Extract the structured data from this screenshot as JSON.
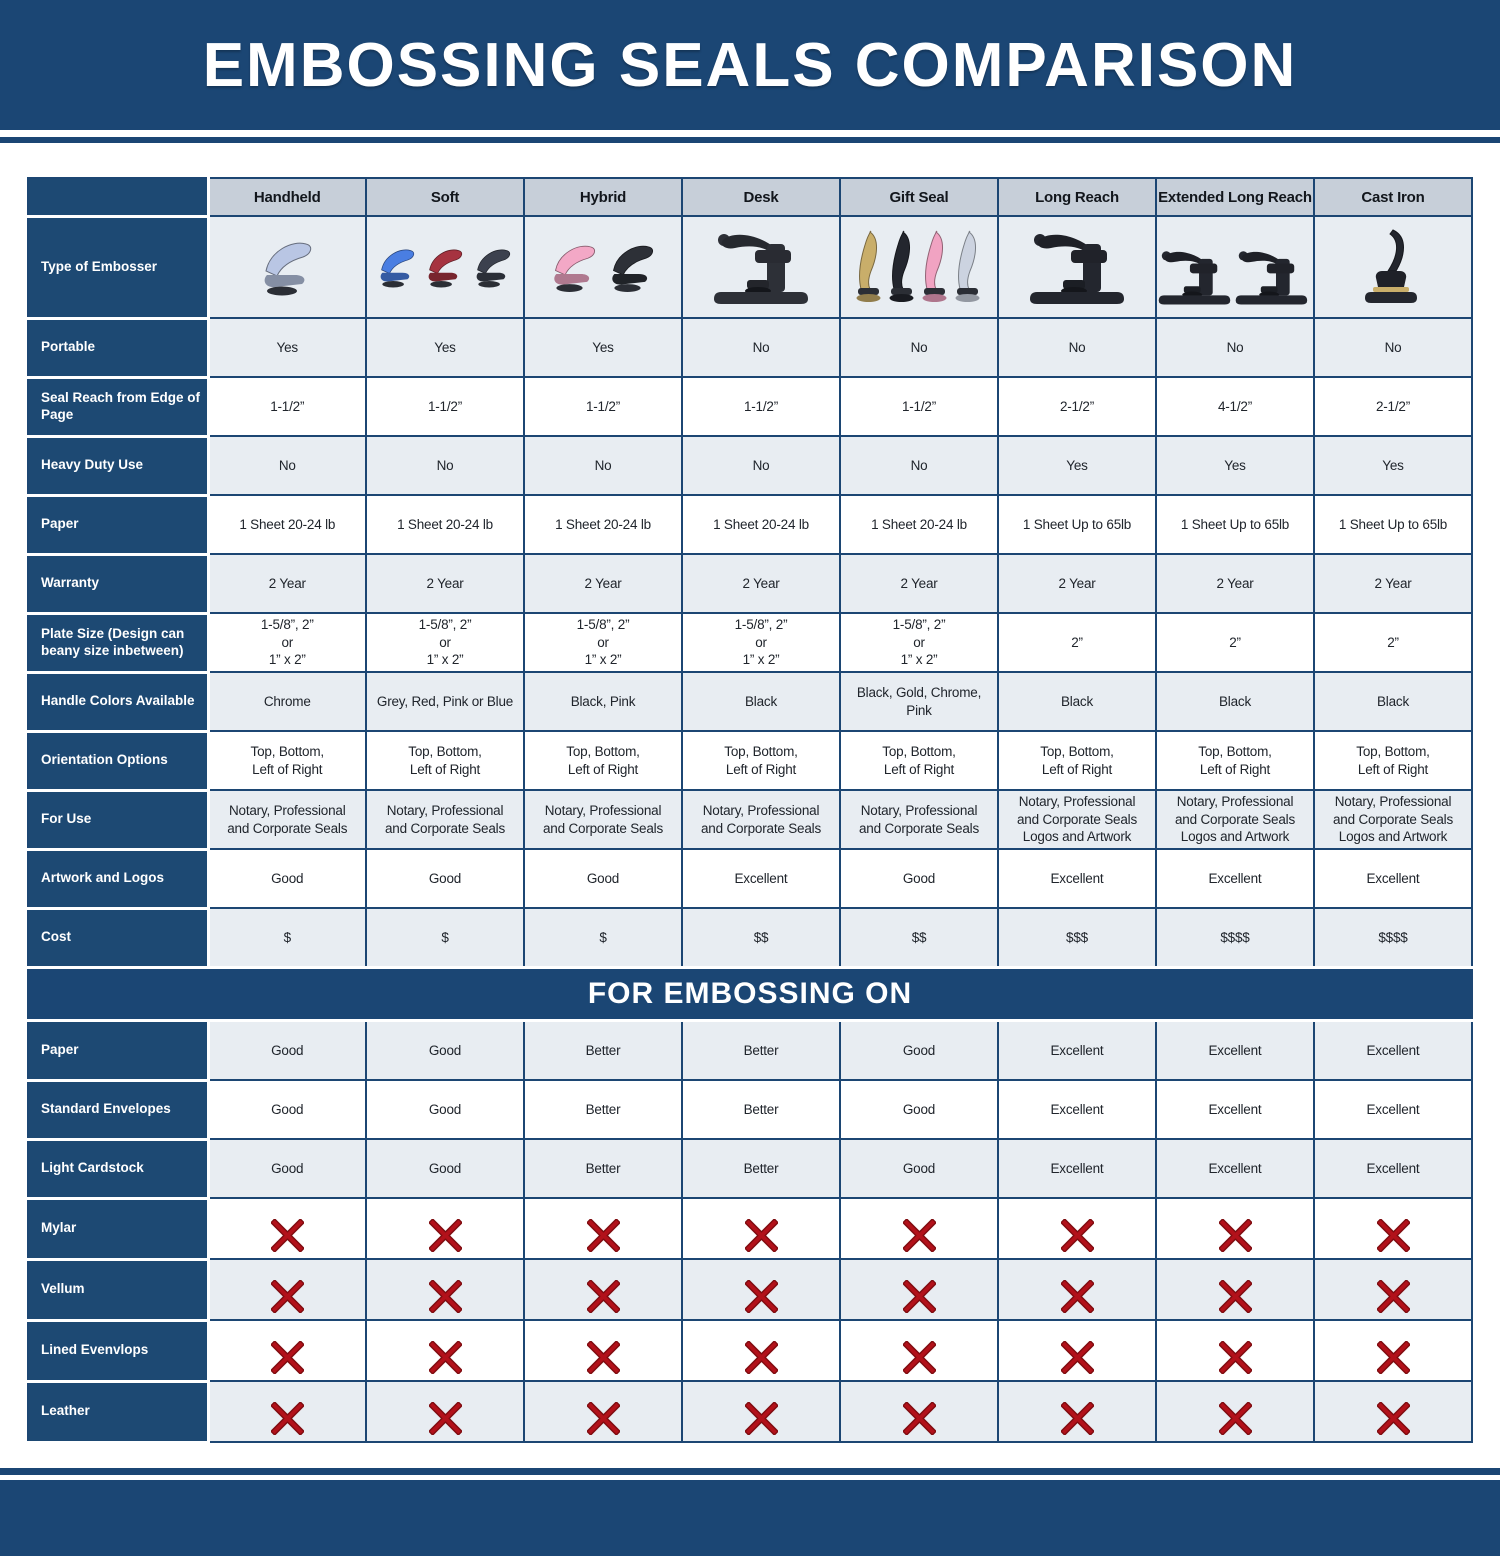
{
  "title": "EMBOSSING SEALS COMPARISON",
  "section_banner": "FOR EMBOSSING ON",
  "colors": {
    "banner_blue": "#1b4674",
    "label_blue": "#1d4973",
    "header_gray": "#c7cfd9",
    "row_light": "#e8edf2",
    "row_white": "#ffffff",
    "border_navy": "#1c4673",
    "x_red": "#b2111a",
    "cell_text": "#20252c",
    "header_text": "#12161c"
  },
  "columns": [
    "Handheld",
    "Soft",
    "Hybrid",
    "Desk",
    "Gift Seal",
    "Long Reach",
    "Extended Long Reach",
    "Cast Iron"
  ],
  "rows_main": [
    {
      "label": "Type of Embosser",
      "images": [
        {
          "name": "handheld-embosser-photo",
          "style": "hand",
          "colors": [
            "#b9c6e4"
          ]
        },
        {
          "name": "soft-embosser-photo",
          "style": "hand",
          "colors": [
            "#4a7ee2",
            "#a63340",
            "#3c414e"
          ]
        },
        {
          "name": "hybrid-embosser-photo",
          "style": "hand",
          "colors": [
            "#f3a8c6",
            "#2d3037"
          ]
        },
        {
          "name": "desk-embosser-photo",
          "style": "desk",
          "colors": [
            "#2d3037"
          ]
        },
        {
          "name": "gift-seal-embosser-photo",
          "style": "gift",
          "colors": [
            "#c9ae6a",
            "#23262e",
            "#f1a3c2",
            "#ccd3e0"
          ]
        },
        {
          "name": "long-reach-embosser-photo",
          "style": "desk",
          "colors": [
            "#23262e"
          ]
        },
        {
          "name": "extended-long-reach-embosser-photo",
          "style": "desk",
          "colors": [
            "#23262e",
            "#23262e"
          ]
        },
        {
          "name": "cast-iron-embosser-photo",
          "style": "cast",
          "colors": [
            "#23262e"
          ]
        }
      ]
    },
    {
      "label": "Portable",
      "values": [
        "Yes",
        "Yes",
        "Yes",
        "No",
        "No",
        "No",
        "No",
        "No"
      ]
    },
    {
      "label": "Seal Reach from Edge of Page",
      "values": [
        "1-1/2”",
        "1-1/2”",
        "1-1/2”",
        "1-1/2”",
        "1-1/2”",
        "2-1/2”",
        "4-1/2”",
        "2-1/2”"
      ]
    },
    {
      "label": "Heavy Duty Use",
      "values": [
        "No",
        "No",
        "No",
        "No",
        "No",
        "Yes",
        "Yes",
        "Yes"
      ]
    },
    {
      "label": "Paper",
      "values": [
        "1 Sheet 20-24 lb",
        "1 Sheet 20-24 lb",
        "1 Sheet 20-24 lb",
        "1 Sheet 20-24 lb",
        "1 Sheet 20-24 lb",
        "1 Sheet Up to 65lb",
        "1 Sheet Up to 65lb",
        "1 Sheet Up to 65lb"
      ]
    },
    {
      "label": "Warranty",
      "values": [
        "2 Year",
        "2 Year",
        "2 Year",
        "2 Year",
        "2 Year",
        "2 Year",
        "2 Year",
        "2 Year"
      ]
    },
    {
      "label": "Plate Size (Design can beany size inbetween)",
      "values": [
        "1-5/8”, 2”\nor\n1” x 2”",
        "1-5/8”, 2”\nor\n1” x 2”",
        "1-5/8”, 2”\nor\n1” x 2”",
        "1-5/8”, 2”\nor\n1” x 2”",
        "1-5/8”, 2”\nor\n1” x 2”",
        "2”",
        "2”",
        "2”"
      ]
    },
    {
      "label": "Handle Colors Available",
      "values": [
        "Chrome",
        "Grey, Red, Pink or Blue",
        "Black, Pink",
        "Black",
        "Black, Gold, Chrome, Pink",
        "Black",
        "Black",
        "Black"
      ]
    },
    {
      "label": "Orientation Options",
      "values": [
        "Top, Bottom,\nLeft of Right",
        "Top, Bottom,\nLeft of Right",
        "Top, Bottom,\nLeft of Right",
        "Top, Bottom,\nLeft of Right",
        "Top, Bottom,\nLeft of Right",
        "Top, Bottom,\nLeft of Right",
        "Top, Bottom,\nLeft of Right",
        "Top, Bottom,\nLeft of Right"
      ]
    },
    {
      "label": "For Use",
      "values": [
        "Notary, Professional\nand Corporate Seals",
        "Notary, Professional\nand Corporate Seals",
        "Notary, Professional\nand Corporate Seals",
        "Notary, Professional\nand Corporate Seals",
        "Notary, Professional\nand Corporate Seals",
        "Notary, Professional\nand Corporate Seals\nLogos and Artwork",
        "Notary, Professional\nand Corporate Seals\nLogos and Artwork",
        "Notary, Professional\nand Corporate Seals\nLogos and Artwork"
      ]
    },
    {
      "label": "Artwork and Logos",
      "values": [
        "Good",
        "Good",
        "Good",
        "Excellent",
        "Good",
        "Excellent",
        "Excellent",
        "Excellent"
      ]
    },
    {
      "label": "Cost",
      "values": [
        "$",
        "$",
        "$",
        "$$",
        "$$",
        "$$$",
        "$$$$",
        "$$$$"
      ]
    }
  ],
  "rows_embossing": [
    {
      "label": "Paper",
      "values": [
        "Good",
        "Good",
        "Better",
        "Better",
        "Good",
        "Excellent",
        "Excellent",
        "Excellent"
      ]
    },
    {
      "label": "Standard Envelopes",
      "values": [
        "Good",
        "Good",
        "Better",
        "Better",
        "Good",
        "Excellent",
        "Excellent",
        "Excellent"
      ]
    },
    {
      "label": "Light Cardstock",
      "values": [
        "Good",
        "Good",
        "Better",
        "Better",
        "Good",
        "Excellent",
        "Excellent",
        "Excellent"
      ]
    },
    {
      "label": "Mylar",
      "icon": "red-x-icon"
    },
    {
      "label": "Vellum",
      "icon": "red-x-icon"
    },
    {
      "label": "Lined Evenvlops",
      "icon": "red-x-icon"
    },
    {
      "label": "Leather",
      "icon": "red-x-icon"
    }
  ]
}
